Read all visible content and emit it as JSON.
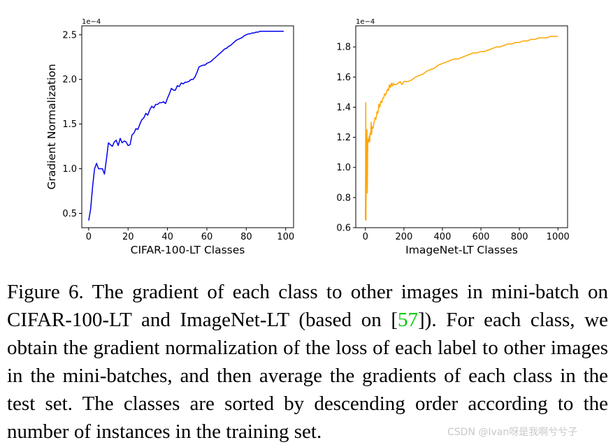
{
  "chart_data": [
    {
      "type": "line",
      "title": "",
      "xlabel": "CIFAR-100-LT Classes",
      "ylabel": "Gradient Normalization",
      "y_scale_label": "1e−4",
      "xlim": [
        -3.5,
        104
      ],
      "ylim": [
        0.34,
        2.6
      ],
      "xticks": [
        0,
        20,
        40,
        60,
        80,
        100
      ],
      "yticks": [
        0.5,
        1.0,
        1.5,
        2.0,
        2.5
      ],
      "ytick_labels": [
        "0.5",
        "1.0",
        "1.5",
        "2.0",
        "2.5"
      ],
      "color": "#0000ee",
      "series": [
        {
          "x": [
            0,
            1,
            2,
            3,
            4,
            5,
            6,
            7,
            8,
            9,
            10,
            11,
            12,
            13,
            14,
            15,
            16,
            17,
            18,
            19,
            20,
            21,
            22,
            23,
            24,
            25,
            26,
            27,
            28,
            29,
            30,
            31,
            32,
            33,
            34,
            35,
            36,
            37,
            38,
            39,
            40,
            41,
            42,
            43,
            44,
            45,
            46,
            47,
            48,
            49,
            50,
            51,
            52,
            53,
            54,
            55,
            56,
            57,
            58,
            59,
            60,
            61,
            62,
            63,
            64,
            65,
            66,
            67,
            68,
            69,
            70,
            71,
            72,
            73,
            74,
            75,
            76,
            77,
            78,
            79,
            80,
            81,
            82,
            83,
            84,
            85,
            86,
            87,
            88,
            89,
            90,
            91,
            92,
            93,
            94,
            95,
            96,
            97,
            98,
            99
          ],
          "y": [
            0.42,
            0.55,
            0.8,
            1.0,
            1.06,
            1.0,
            1.0,
            1.0,
            0.94,
            1.1,
            1.29,
            1.27,
            1.25,
            1.3,
            1.32,
            1.26,
            1.34,
            1.29,
            1.31,
            1.3,
            1.26,
            1.27,
            1.38,
            1.4,
            1.45,
            1.44,
            1.5,
            1.55,
            1.57,
            1.62,
            1.6,
            1.66,
            1.7,
            1.68,
            1.72,
            1.72,
            1.74,
            1.74,
            1.75,
            1.73,
            1.79,
            1.84,
            1.9,
            1.88,
            1.88,
            1.93,
            1.92,
            1.96,
            1.95,
            1.97,
            1.97,
            1.98,
            2.0,
            2.0,
            2.03,
            2.08,
            2.14,
            2.15,
            2.16,
            2.16,
            2.18,
            2.19,
            2.2,
            2.22,
            2.24,
            2.26,
            2.28,
            2.3,
            2.32,
            2.34,
            2.35,
            2.37,
            2.38,
            2.4,
            2.42,
            2.44,
            2.45,
            2.46,
            2.47,
            2.49,
            2.5,
            2.51,
            2.51,
            2.52,
            2.52,
            2.53,
            2.53,
            2.54,
            2.54,
            2.54,
            2.54,
            2.54,
            2.54,
            2.54,
            2.54,
            2.54,
            2.54,
            2.54,
            2.54,
            2.54
          ]
        }
      ]
    },
    {
      "type": "line",
      "title": "",
      "xlabel": "ImageNet-LT Classes",
      "ylabel": "",
      "y_scale_label": "1e−4",
      "xlim": [
        -50,
        1050
      ],
      "ylim": [
        0.6,
        1.94
      ],
      "xticks": [
        0,
        200,
        400,
        600,
        800,
        1000
      ],
      "yticks": [
        0.6,
        0.8,
        1.0,
        1.2,
        1.4,
        1.6,
        1.8
      ],
      "ytick_labels": [
        "0.6",
        "0.8",
        "1.0",
        "1.2",
        "1.4",
        "1.6",
        "1.8"
      ],
      "color": "#ffa500",
      "series": [
        {
          "x": [
            0,
            2,
            3,
            5,
            8,
            10,
            12,
            15,
            18,
            20,
            22,
            25,
            28,
            30,
            32,
            35,
            40,
            45,
            50,
            55,
            60,
            65,
            70,
            75,
            80,
            85,
            90,
            95,
            100,
            105,
            110,
            115,
            120,
            125,
            130,
            135,
            140,
            145,
            150,
            160,
            170,
            180,
            190,
            200,
            220,
            240,
            260,
            280,
            300,
            320,
            340,
            360,
            380,
            400,
            420,
            440,
            460,
            480,
            500,
            520,
            540,
            560,
            580,
            600,
            620,
            640,
            660,
            680,
            700,
            720,
            740,
            760,
            780,
            800,
            820,
            840,
            860,
            880,
            900,
            920,
            940,
            960,
            980,
            1000
          ],
          "y": [
            0.65,
            1.43,
            0.65,
            1.1,
            1.25,
            0.83,
            1.15,
            1.19,
            1.17,
            1.21,
            1.17,
            1.23,
            1.22,
            1.3,
            1.22,
            1.27,
            1.26,
            1.3,
            1.33,
            1.32,
            1.37,
            1.36,
            1.42,
            1.4,
            1.44,
            1.43,
            1.46,
            1.46,
            1.49,
            1.48,
            1.5,
            1.52,
            1.51,
            1.55,
            1.53,
            1.56,
            1.54,
            1.56,
            1.55,
            1.55,
            1.56,
            1.57,
            1.55,
            1.57,
            1.57,
            1.58,
            1.6,
            1.61,
            1.62,
            1.64,
            1.65,
            1.66,
            1.68,
            1.69,
            1.7,
            1.71,
            1.72,
            1.72,
            1.73,
            1.74,
            1.75,
            1.76,
            1.76,
            1.77,
            1.77,
            1.78,
            1.79,
            1.8,
            1.8,
            1.81,
            1.82,
            1.82,
            1.83,
            1.83,
            1.84,
            1.84,
            1.85,
            1.85,
            1.86,
            1.86,
            1.86,
            1.87,
            1.87,
            1.87
          ]
        }
      ]
    }
  ],
  "caption": {
    "prefix": "Figure 6. The gradient of each class to other images in mini-batch on CIFAR-100-LT and ImageNet-LT (based on [",
    "ref": "57",
    "suffix": "]).  For each class, we obtain the gradient normalization of the loss of each label to other images in the mini-batches, and then average the gradients of each class in the test set. The classes are sorted by descending order according to the number of instances in the training set."
  },
  "watermark": "CSDN @Ivan呀是我啊兮兮子"
}
